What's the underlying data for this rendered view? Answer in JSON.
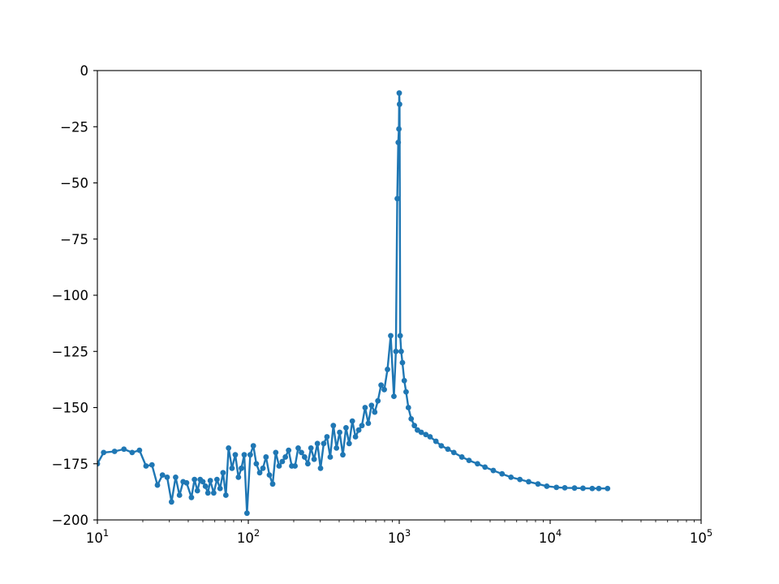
{
  "chart_data": {
    "type": "line",
    "title": "",
    "xlabel": "",
    "ylabel": "",
    "xscale": "log",
    "xlim": [
      10,
      100000
    ],
    "ylim": [
      -200,
      0
    ],
    "grid": false,
    "legend": "none",
    "marker": "circle",
    "color": "#1f77b4",
    "x_ticks": [
      {
        "base": "10",
        "exp": "1"
      },
      {
        "base": "10",
        "exp": "2"
      },
      {
        "base": "10",
        "exp": "3"
      },
      {
        "base": "10",
        "exp": "4"
      },
      {
        "base": "10",
        "exp": "5"
      }
    ],
    "y_ticks": [
      "0",
      "−25",
      "−50",
      "−75",
      "−100",
      "−125",
      "−150",
      "−175",
      "−200"
    ],
    "series": [
      {
        "x": [
          10,
          11,
          13,
          15,
          17,
          19,
          21,
          23,
          25,
          27,
          29,
          31,
          33,
          35,
          37,
          39,
          42,
          44,
          46,
          48,
          50,
          52,
          54,
          56,
          59,
          62,
          65,
          68,
          71,
          74,
          78,
          82,
          86,
          90,
          94,
          98,
          103,
          108,
          113,
          119,
          125,
          131,
          138,
          145,
          152,
          160,
          168,
          176,
          185,
          194,
          204,
          214,
          225,
          236,
          248,
          260,
          273,
          287,
          301,
          316,
          332,
          349,
          366,
          384,
          403,
          423,
          444,
          466,
          489,
          513,
          539,
          566,
          594,
          624,
          655,
          688,
          722,
          758,
          796,
          836,
          878,
          922,
          950,
          970,
          985,
          995,
          1000,
          1005,
          1015,
          1030,
          1050,
          1080,
          1110,
          1150,
          1200,
          1260,
          1320,
          1400,
          1500,
          1600,
          1750,
          1900,
          2100,
          2300,
          2600,
          2900,
          3300,
          3700,
          4200,
          4800,
          5500,
          6300,
          7200,
          8300,
          9500,
          11000,
          12500,
          14500,
          16500,
          19000,
          21000,
          24000
        ],
        "y": [
          -175,
          -170,
          -169.5,
          -168.5,
          -170,
          -169,
          -176,
          -175.5,
          -184.5,
          -180,
          -181,
          -192,
          -181,
          -189,
          -183,
          -183.5,
          -190,
          -182,
          -187,
          -182,
          -183,
          -185,
          -188,
          -182.5,
          -188,
          -182,
          -186,
          -179,
          -189,
          -168,
          -177,
          -171,
          -181,
          -177,
          -171,
          -197,
          -171,
          -167,
          -175,
          -179,
          -177,
          -172,
          -180,
          -184,
          -170,
          -176,
          -174,
          -172,
          -169,
          -176,
          -176,
          -168,
          -170,
          -172,
          -175,
          -168,
          -173,
          -166,
          -177,
          -166,
          -163,
          -172,
          -158,
          -168,
          -161,
          -171,
          -159,
          -166,
          -156,
          -163,
          -160,
          -158,
          -150,
          -157,
          -149,
          -152,
          -147,
          -140,
          -142,
          -133,
          -118,
          -145,
          -125,
          -57,
          -32,
          -26,
          -10,
          -15,
          -118,
          -125,
          -130,
          -138,
          -143,
          -150,
          -155,
          -158,
          -160,
          -161,
          -162,
          -163,
          -165,
          -167,
          -168.5,
          -170,
          -172,
          -173.5,
          -175,
          -176.5,
          -178,
          -179.5,
          -181,
          -182,
          -183,
          -184,
          -185,
          -185.5,
          -185.7,
          -185.8,
          -185.9,
          -186,
          -186,
          -186
        ]
      }
    ]
  }
}
